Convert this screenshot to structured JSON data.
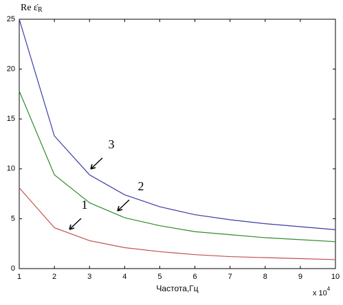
{
  "chart_data": {
    "type": "line",
    "y_label": "Re ε̇",
    "y_label_sub": "R",
    "x_label": "Частота,Гц",
    "x_multiplier": "x 10",
    "x_multiplier_exp": "4",
    "x": [
      1,
      2,
      3,
      4,
      5,
      6,
      7,
      8,
      9,
      10
    ],
    "series": [
      {
        "name": "1",
        "color": "#c0504d",
        "values": [
          8.1,
          4.1,
          2.8,
          2.1,
          1.7,
          1.4,
          1.2,
          1.1,
          1.0,
          0.9
        ]
      },
      {
        "name": "2",
        "color": "#2e8b2e",
        "values": [
          17.8,
          9.4,
          6.6,
          5.1,
          4.3,
          3.7,
          3.4,
          3.1,
          2.9,
          2.7
        ]
      },
      {
        "name": "3",
        "color": "#3a3aa8",
        "values": [
          25,
          13.3,
          9.4,
          7.4,
          6.2,
          5.4,
          4.9,
          4.5,
          4.2,
          3.9
        ]
      }
    ],
    "xlim": [
      1,
      10
    ],
    "ylim": [
      0,
      25
    ],
    "xticks": [
      1,
      2,
      3,
      4,
      5,
      6,
      7,
      8,
      9,
      10
    ],
    "yticks": [
      0,
      5,
      10,
      15,
      20,
      25
    ],
    "grid": false
  }
}
